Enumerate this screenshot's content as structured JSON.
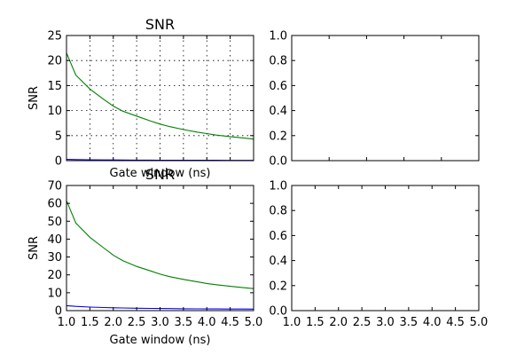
{
  "chart_data": [
    {
      "type": "line",
      "title": "SNR",
      "xlabel": "Gate window (ns)",
      "ylabel": "SNR",
      "xlim": [
        1.0,
        5.0
      ],
      "ylim": [
        0,
        25
      ],
      "xticks": [
        1.0,
        1.5,
        2.0,
        2.5,
        3.0,
        3.5,
        4.0,
        4.5,
        5.0
      ],
      "yticks": [
        0,
        5,
        10,
        15,
        20,
        25
      ],
      "show_xticklabels": false,
      "grid": true,
      "x": [
        1.0,
        1.2,
        1.5,
        1.8,
        2.0,
        2.2,
        2.5,
        2.8,
        3.0,
        3.2,
        3.5,
        3.8,
        4.0,
        4.2,
        4.5,
        4.8,
        5.0
      ],
      "series": [
        {
          "color": "#008000",
          "values": [
            21.5,
            17.1,
            14.3,
            12.2,
            10.9,
            9.9,
            8.9,
            7.9,
            7.3,
            6.8,
            6.2,
            5.7,
            5.4,
            5.1,
            4.8,
            4.5,
            4.3
          ]
        },
        {
          "color": "#0000ff",
          "values": [
            0.25,
            0.22,
            0.18,
            0.15,
            0.14,
            0.13,
            0.11,
            0.1,
            0.09,
            0.09,
            0.08,
            0.07,
            0.07,
            0.07,
            0.06,
            0.06,
            0.06
          ]
        }
      ]
    },
    {
      "type": "line",
      "title": "",
      "xlim": [
        0,
        1
      ],
      "ylim": [
        0,
        1
      ],
      "yticks": [
        0.0,
        0.2,
        0.4,
        0.6,
        0.8,
        1.0
      ],
      "show_xticklabels": false,
      "grid": false,
      "series": []
    },
    {
      "type": "line",
      "title": "SNR",
      "xlabel": "Gate window (ns)",
      "ylabel": "SNR",
      "xlim": [
        1.0,
        5.0
      ],
      "ylim": [
        0,
        70
      ],
      "xticks": [
        1.0,
        1.5,
        2.0,
        2.5,
        3.0,
        3.5,
        4.0,
        4.5,
        5.0
      ],
      "yticks": [
        0,
        10,
        20,
        30,
        40,
        50,
        60,
        70
      ],
      "show_xticklabels": true,
      "grid": false,
      "x": [
        1.0,
        1.2,
        1.5,
        1.8,
        2.0,
        2.2,
        2.5,
        2.8,
        3.0,
        3.2,
        3.5,
        3.8,
        4.0,
        4.2,
        4.5,
        4.8,
        5.0
      ],
      "series": [
        {
          "color": "#008000",
          "values": [
            61.5,
            49.0,
            41.0,
            35.0,
            31.0,
            28.0,
            24.7,
            22.2,
            20.4,
            19.0,
            17.5,
            16.1,
            15.2,
            14.5,
            13.6,
            12.8,
            12.3
          ]
        },
        {
          "color": "#0000ff",
          "values": [
            2.8,
            2.4,
            2.0,
            1.75,
            1.6,
            1.5,
            1.35,
            1.25,
            1.18,
            1.12,
            1.05,
            1.0,
            0.96,
            0.93,
            0.9,
            0.87,
            0.85
          ]
        }
      ]
    },
    {
      "type": "line",
      "title": "",
      "xlim": [
        1.0,
        5.0
      ],
      "ylim": [
        0,
        1
      ],
      "xticks": [
        1.0,
        1.5,
        2.0,
        2.5,
        3.0,
        3.5,
        4.0,
        4.5,
        5.0
      ],
      "yticks": [
        0.0,
        0.2,
        0.4,
        0.6,
        0.8,
        1.0
      ],
      "show_xticklabels": true,
      "grid": false,
      "series": []
    }
  ]
}
